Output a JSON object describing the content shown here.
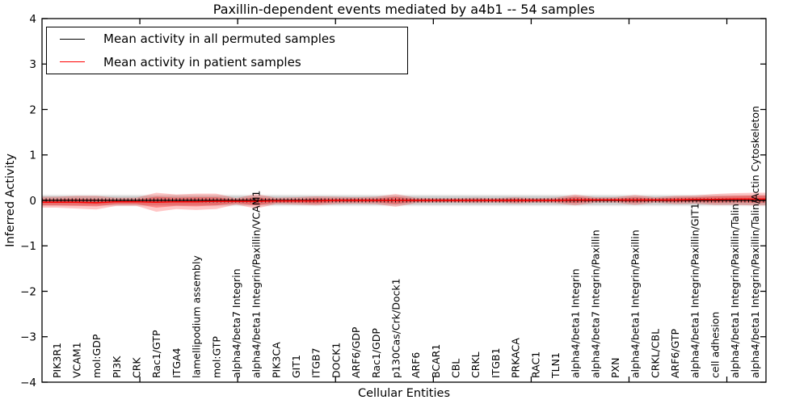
{
  "figure": {
    "title": "Paxillin-dependent events mediated by a4b1 -- 54 samples",
    "xlabel": "Cellular Entities",
    "ylabel": "Inferred Activity"
  },
  "legend": {
    "entries": [
      {
        "label": "Mean activity in all permuted samples",
        "color": "#000000"
      },
      {
        "label": "Mean activity in patient samples",
        "color": "#ff0000"
      }
    ]
  },
  "chart_data": {
    "type": "line",
    "title": "Paxillin-dependent events mediated by a4b1 -- 54 samples",
    "xlabel": "Cellular Entities",
    "ylabel": "Inferred Activity",
    "ylim": [
      -4,
      4
    ],
    "yticks": [
      -4,
      -3,
      -2,
      -1,
      0,
      1,
      2,
      3,
      4
    ],
    "grid": false,
    "legend_position": "upper left",
    "categories": [
      "PIK3R1",
      "VCAM1",
      "mol:GDP",
      "PI3K",
      "CRK",
      "Rac1/GTP",
      "ITGA4",
      "lamellipodium assembly",
      "mol:GTP",
      "alpha4/beta7 Integrin",
      "alpha4/beta1 Integrin/Paxillin/VCAM1",
      "PIK3CA",
      "GIT1",
      "ITGB7",
      "DOCK1",
      "ARF6/GDP",
      "Rac1/GDP",
      "p130Cas/Crk/Dock1",
      "ARF6",
      "BCAR1",
      "CBL",
      "CRKL",
      "ITGB1",
      "PRKACA",
      "RAC1",
      "TLN1",
      "alpha4/beta1 Integrin",
      "alpha4/beta7 Integrin/Paxillin",
      "PXN",
      "alpha4/beta1 Integrin/Paxillin",
      "CRKL/CBL",
      "ARF6/GTP",
      "alpha4/beta1 Integrin/Paxillin/GIT1",
      "cell adhesion",
      "alpha4/beta1 Integrin/Paxillin/Talin",
      "alpha4/beta1 Integrin/Paxillin/Talin/Actin Cytoskeleton"
    ],
    "series": [
      {
        "name": "Mean activity in all permuted samples",
        "color": "#000000",
        "style": "solid line with small vertical tick markers",
        "values": [
          0,
          0,
          0,
          0,
          0,
          0,
          0,
          0,
          0,
          0,
          0,
          0,
          0,
          0,
          0,
          0,
          0,
          0,
          0,
          0,
          0,
          0,
          0,
          0,
          0,
          0,
          0,
          0,
          0,
          0,
          0,
          0,
          0,
          0,
          0,
          0
        ]
      },
      {
        "name": "Mean activity in patient samples",
        "color": "#ff0000",
        "style": "solid",
        "values": [
          -0.04,
          -0.04,
          -0.05,
          -0.03,
          -0.03,
          -0.04,
          -0.03,
          -0.03,
          -0.02,
          -0.02,
          -0.02,
          -0.01,
          -0.01,
          -0.01,
          0,
          0,
          0,
          0,
          0,
          0,
          0,
          0,
          0,
          0,
          0,
          0,
          0.01,
          0.01,
          0.01,
          0.01,
          0.01,
          0.01,
          0.02,
          0.02,
          0.03,
          0.03
        ]
      }
    ],
    "bands": [
      {
        "name": "patient-std-band-outer",
        "color": "#ff0000",
        "opacity": 0.22,
        "center_series": 1,
        "halfwidths": [
          0.12,
          0.14,
          0.15,
          0.09,
          0.09,
          0.21,
          0.16,
          0.18,
          0.17,
          0.07,
          0.16,
          0.07,
          0.08,
          0.1,
          0.08,
          0.07,
          0.08,
          0.14,
          0.06,
          0.05,
          0.05,
          0.06,
          0.05,
          0.07,
          0.05,
          0.06,
          0.12,
          0.06,
          0.06,
          0.11,
          0.06,
          0.09,
          0.09,
          0.12,
          0.13,
          0.14
        ]
      },
      {
        "name": "patient-std-band-inner",
        "color": "#ff0000",
        "opacity": 0.3,
        "center_series": 1,
        "halfwidths": [
          0.07,
          0.08,
          0.08,
          0.05,
          0.05,
          0.12,
          0.09,
          0.1,
          0.09,
          0.04,
          0.09,
          0.04,
          0.04,
          0.06,
          0.04,
          0.04,
          0.04,
          0.08,
          0.03,
          0.03,
          0.03,
          0.03,
          0.03,
          0.04,
          0.03,
          0.03,
          0.07,
          0.03,
          0.03,
          0.06,
          0.03,
          0.05,
          0.05,
          0.07,
          0.07,
          0.08
        ]
      },
      {
        "name": "permuted-std-band",
        "color": "#000000",
        "opacity": 0.14,
        "center_value": 0,
        "halfwidth": 0.1
      }
    ]
  }
}
